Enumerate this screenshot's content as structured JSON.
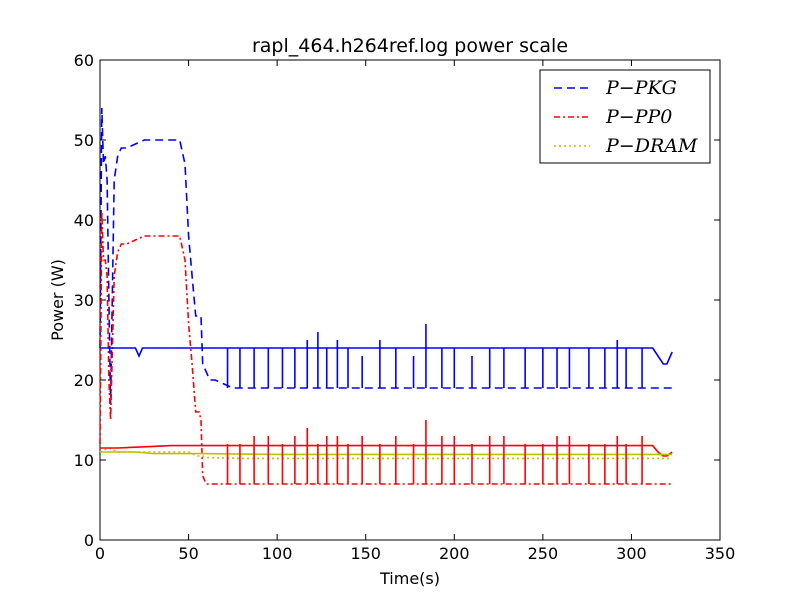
{
  "chart_data": {
    "type": "line",
    "title": "rapl_464.h264ref.log power scale",
    "xlabel": "Time(s)",
    "ylabel": "Power (W)",
    "xlim": [
      0,
      350
    ],
    "ylim": [
      0,
      60
    ],
    "xticks": [
      "0",
      "50",
      "100",
      "150",
      "200",
      "250",
      "300",
      "350"
    ],
    "yticks": [
      "0",
      "10",
      "20",
      "30",
      "40",
      "50",
      "60"
    ],
    "grid": false,
    "legend_position": "top-right",
    "series": [
      {
        "name": "P−PKG",
        "color": "#0000ff",
        "style": "dashed",
        "x": [
          0,
          1,
          2,
          3,
          4,
          5,
          6,
          8,
          10,
          12,
          15,
          20,
          25,
          30,
          35,
          40,
          45,
          48,
          50,
          52,
          54,
          56,
          57,
          58,
          60,
          62,
          65,
          70,
          75,
          80,
          90,
          100,
          120,
          150,
          180,
          200,
          250,
          300,
          310,
          313,
          316,
          320,
          323
        ],
        "y": [
          24,
          54,
          47,
          48,
          45,
          30,
          17,
          45,
          48,
          49,
          49,
          49.5,
          50,
          50,
          50,
          50,
          50,
          47,
          38,
          33,
          28,
          28,
          28,
          22,
          21,
          20,
          20,
          19.5,
          19,
          19,
          19,
          19,
          19,
          19,
          19,
          19,
          19,
          19,
          19,
          19,
          19,
          19,
          19
        ]
      },
      {
        "name": "P−PP0",
        "color": "#ff0000",
        "style": "dashdot",
        "x": [
          0,
          1,
          2,
          3,
          4,
          5,
          6,
          8,
          10,
          12,
          15,
          20,
          25,
          30,
          35,
          40,
          45,
          48,
          50,
          52,
          54,
          56,
          57,
          58,
          60,
          62,
          65,
          70,
          75,
          80,
          90,
          100,
          120,
          150,
          180,
          200,
          250,
          300,
          310,
          313,
          316,
          320,
          323
        ],
        "y": [
          12,
          41,
          35,
          35,
          33,
          20,
          15,
          33,
          36,
          37,
          37,
          37.5,
          38,
          38,
          38,
          38,
          38,
          35,
          27,
          22,
          16,
          16,
          15,
          8,
          7,
          7,
          7,
          7,
          7,
          7,
          7,
          7,
          7,
          7,
          7,
          7,
          7,
          7,
          7,
          7,
          7,
          7,
          7
        ]
      },
      {
        "name": "P−DRAM",
        "color": "#bfbf00",
        "style": "dotted",
        "x": [
          0,
          5,
          10,
          20,
          30,
          40,
          50,
          55,
          58,
          60,
          80,
          100,
          150,
          200,
          250,
          300,
          310,
          323
        ],
        "y": [
          11,
          11.5,
          11,
          11,
          11,
          11,
          11,
          10.5,
          10.5,
          10.3,
          10.2,
          10.2,
          10.2,
          10.2,
          10.2,
          10.2,
          10.2,
          10.2
        ]
      },
      {
        "name": "",
        "color": "#0000ff",
        "style": "solid",
        "x": [
          0,
          10,
          20,
          22,
          24,
          30,
          40,
          50,
          100,
          150,
          200,
          250,
          300,
          312,
          315,
          318,
          320,
          322,
          323
        ],
        "y": [
          24,
          24,
          24,
          23,
          24,
          24,
          24,
          24,
          24,
          24,
          24,
          24,
          24,
          24,
          23,
          22,
          22,
          23,
          23.5
        ]
      },
      {
        "name": "",
        "color": "#ff0000",
        "style": "solid",
        "x": [
          0,
          10,
          20,
          30,
          40,
          50,
          100,
          150,
          200,
          250,
          300,
          312,
          315,
          318,
          320,
          323
        ],
        "y": [
          11.5,
          11.5,
          11.6,
          11.7,
          11.8,
          11.8,
          11.8,
          11.8,
          11.8,
          11.8,
          11.8,
          11.8,
          11,
          10.5,
          10.5,
          11
        ]
      },
      {
        "name": "",
        "color": "#bfbf00",
        "style": "solid",
        "x": [
          0,
          10,
          20,
          30,
          40,
          50,
          58,
          100,
          150,
          200,
          250,
          300,
          323
        ],
        "y": [
          11,
          11,
          11,
          10.8,
          10.8,
          10.8,
          10.8,
          10.7,
          10.7,
          10.7,
          10.7,
          10.7,
          10.7
        ]
      }
    ],
    "spikes_pkg": [
      72,
      79,
      87,
      95,
      103,
      110,
      117,
      123,
      128,
      134,
      140,
      148,
      158,
      167,
      177,
      184,
      193,
      200,
      210,
      220,
      228,
      240,
      250,
      258,
      265,
      276,
      285,
      292,
      297,
      306
    ],
    "spikes_pp0": [
      72,
      79,
      87,
      95,
      103,
      110,
      117,
      123,
      128,
      134,
      140,
      148,
      158,
      167,
      177,
      184,
      193,
      200,
      210,
      220,
      228,
      240,
      250,
      258,
      265,
      276,
      285,
      292,
      297,
      306
    ]
  }
}
